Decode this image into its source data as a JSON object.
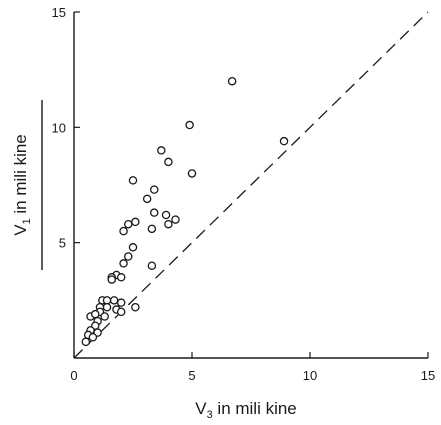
{
  "chart_data": {
    "type": "scatter",
    "title": "",
    "xlabel": {
      "main": "V",
      "sub": "3",
      "rest": " in mili kine"
    },
    "ylabel": {
      "main": "V",
      "sub": "1",
      "rest": " in mili kine"
    },
    "xlim": [
      0,
      15
    ],
    "ylim": [
      0,
      15
    ],
    "xticks": [
      0,
      5,
      10,
      15
    ],
    "yticks": [
      5,
      10,
      15
    ],
    "grid": false,
    "reference_line": {
      "style": "dashed",
      "from": [
        0,
        0
      ],
      "to": [
        15,
        15
      ]
    },
    "series": [
      {
        "marker": "open-circle",
        "points": [
          [
            6.7,
            12.0
          ],
          [
            4.9,
            10.1
          ],
          [
            8.9,
            9.4
          ],
          [
            3.7,
            9.0
          ],
          [
            4.0,
            8.5
          ],
          [
            5.0,
            8.0
          ],
          [
            2.5,
            7.7
          ],
          [
            3.4,
            7.3
          ],
          [
            3.1,
            6.9
          ],
          [
            3.4,
            6.3
          ],
          [
            3.9,
            6.2
          ],
          [
            4.3,
            6.0
          ],
          [
            4.0,
            5.8
          ],
          [
            2.6,
            5.9
          ],
          [
            2.3,
            5.8
          ],
          [
            2.1,
            5.5
          ],
          [
            3.3,
            5.6
          ],
          [
            2.5,
            4.8
          ],
          [
            2.3,
            4.4
          ],
          [
            2.1,
            4.1
          ],
          [
            3.3,
            4.0
          ],
          [
            1.8,
            3.6
          ],
          [
            1.6,
            3.5
          ],
          [
            2.0,
            3.5
          ],
          [
            1.6,
            3.4
          ],
          [
            1.2,
            2.5
          ],
          [
            1.4,
            2.5
          ],
          [
            1.7,
            2.5
          ],
          [
            2.0,
            2.4
          ],
          [
            2.6,
            2.2
          ],
          [
            1.1,
            2.2
          ],
          [
            1.4,
            2.2
          ],
          [
            1.8,
            2.1
          ],
          [
            1.1,
            2.0
          ],
          [
            2.0,
            2.0
          ],
          [
            0.7,
            1.8
          ],
          [
            0.9,
            1.9
          ],
          [
            1.3,
            1.8
          ],
          [
            1.0,
            1.6
          ],
          [
            0.9,
            1.4
          ],
          [
            0.7,
            1.2
          ],
          [
            1.0,
            1.1
          ],
          [
            0.6,
            1.0
          ],
          [
            0.8,
            0.9
          ],
          [
            0.5,
            0.7
          ]
        ]
      }
    ]
  }
}
